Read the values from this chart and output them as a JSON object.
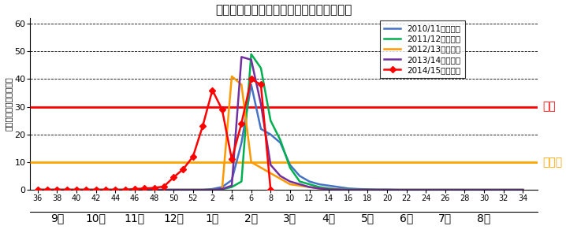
{
  "title": "神奈川県インフルエンザ定点当たり報告数",
  "ylabel": "定点当たり報告数（人）",
  "ylim": [
    0,
    62
  ],
  "yticks": [
    0,
    10,
    20,
    30,
    40,
    50,
    60
  ],
  "alert_level": 30,
  "caution_level": 10,
  "alert_label": "警報",
  "caution_label": "注意報",
  "week_ticks_raw": [
    36,
    38,
    40,
    42,
    44,
    46,
    48,
    50,
    52,
    2,
    4,
    6,
    8,
    10,
    12,
    14,
    16,
    18,
    20,
    22,
    24,
    26,
    28,
    30,
    32,
    34
  ],
  "month_names": [
    "9月",
    "10月",
    "11月",
    "12月",
    "1月",
    "2月",
    "3月",
    "4月",
    "5月",
    "6月",
    "7月",
    "8月"
  ],
  "month_tick_starts_raw": [
    36,
    40,
    44,
    48,
    52,
    4,
    8,
    12,
    16,
    20,
    24,
    28,
    32
  ],
  "xlim_left": 35.2,
  "xlim_right": 87.5,
  "seasons": [
    {
      "label": "2010/11シーズン",
      "color": "#4472C4",
      "marker": null,
      "weeks": [
        36,
        37,
        38,
        39,
        40,
        41,
        42,
        43,
        44,
        45,
        46,
        47,
        48,
        49,
        50,
        51,
        52,
        1,
        2,
        3,
        4,
        5,
        6,
        7,
        8,
        9,
        10,
        11,
        12,
        13,
        14,
        15,
        16,
        17,
        18,
        19,
        20,
        21,
        22,
        23,
        24,
        25,
        26,
        27,
        28,
        29,
        30,
        31,
        32,
        33,
        34
      ],
      "values": [
        0,
        0,
        0,
        0,
        0,
        0,
        0,
        0,
        0,
        0,
        0,
        0,
        0,
        0,
        0,
        0,
        0,
        0,
        0.3,
        1.0,
        3.5,
        17,
        38,
        22,
        20,
        17,
        9,
        5,
        3,
        2,
        1.5,
        1.0,
        0.5,
        0.3,
        0.2,
        0.1,
        0.1,
        0,
        0,
        0,
        0,
        0,
        0,
        0,
        0,
        0,
        0,
        0,
        0,
        0,
        0
      ]
    },
    {
      "label": "2011/12シーズン",
      "color": "#00B050",
      "marker": null,
      "weeks": [
        36,
        37,
        38,
        39,
        40,
        41,
        42,
        43,
        44,
        45,
        46,
        47,
        48,
        49,
        50,
        51,
        52,
        1,
        2,
        3,
        4,
        5,
        6,
        7,
        8,
        9,
        10,
        11,
        12,
        13,
        14,
        15,
        16,
        17,
        18,
        19,
        20,
        21,
        22,
        23,
        24,
        25,
        26,
        27,
        28,
        29,
        30,
        31,
        32,
        33,
        34
      ],
      "values": [
        0,
        0,
        0,
        0,
        0,
        0,
        0,
        0,
        0,
        0,
        0,
        0,
        0,
        0,
        0,
        0,
        0,
        0,
        0,
        0.2,
        1.0,
        3.0,
        49,
        44,
        25,
        18,
        8,
        3,
        2,
        1,
        0.5,
        0.2,
        0.1,
        0,
        0,
        0,
        0,
        0,
        0,
        0,
        0,
        0,
        0,
        0,
        0,
        0,
        0,
        0,
        0,
        0,
        0
      ]
    },
    {
      "label": "2012/13シーズン",
      "color": "#FF9900",
      "marker": null,
      "weeks": [
        36,
        37,
        38,
        39,
        40,
        41,
        42,
        43,
        44,
        45,
        46,
        47,
        48,
        49,
        50,
        51,
        52,
        1,
        2,
        3,
        4,
        5,
        6,
        7,
        8,
        9,
        10,
        11,
        12,
        13,
        14,
        15,
        16,
        17,
        18,
        19,
        20,
        21,
        22,
        23,
        24,
        25,
        26,
        27,
        28,
        29,
        30,
        31,
        32,
        33,
        34
      ],
      "values": [
        0,
        0,
        0,
        0,
        0,
        0,
        0,
        0,
        0,
        0,
        0,
        0,
        0,
        0,
        0,
        0,
        0,
        0,
        0,
        0.1,
        41,
        38,
        10,
        8,
        6,
        4,
        2,
        1.5,
        1,
        0.5,
        0.2,
        0.1,
        0,
        0,
        0,
        0,
        0,
        0,
        0,
        0,
        0,
        0,
        0,
        0,
        0,
        0,
        0,
        0,
        0,
        0,
        0
      ]
    },
    {
      "label": "2013/14シーズン",
      "color": "#7030A0",
      "marker": null,
      "weeks": [
        36,
        37,
        38,
        39,
        40,
        41,
        42,
        43,
        44,
        45,
        46,
        47,
        48,
        49,
        50,
        51,
        52,
        1,
        2,
        3,
        4,
        5,
        6,
        7,
        8,
        9,
        10,
        11,
        12,
        13,
        14,
        15,
        16,
        17,
        18,
        19,
        20,
        21,
        22,
        23,
        24,
        25,
        26,
        27,
        28,
        29,
        30,
        31,
        32,
        33,
        34
      ],
      "values": [
        0,
        0,
        0,
        0,
        0,
        0,
        0,
        0,
        0,
        0,
        0,
        0,
        0,
        0,
        0,
        0,
        0,
        0,
        0,
        0.3,
        1.5,
        48,
        47,
        31,
        9,
        5,
        3,
        2,
        1,
        0.5,
        0.2,
        0.1,
        0,
        0,
        0,
        0,
        0,
        0,
        0,
        0,
        0,
        0,
        0,
        0,
        0,
        0,
        0,
        0,
        0,
        0,
        0
      ]
    },
    {
      "label": "2014/15シーズン",
      "color": "#FF0000",
      "marker": "D",
      "weeks": [
        36,
        37,
        38,
        39,
        40,
        41,
        42,
        43,
        44,
        45,
        46,
        47,
        48,
        49,
        50,
        51,
        52,
        1,
        2,
        3,
        4,
        5,
        6,
        7,
        8
      ],
      "values": [
        0,
        0,
        0,
        0,
        0,
        0,
        0,
        0,
        0,
        0,
        0.3,
        0.5,
        0.7,
        1.2,
        4.5,
        7.5,
        12,
        23,
        36,
        29,
        11,
        24,
        40,
        38,
        0
      ]
    }
  ],
  "background_color": "#FFFFFF"
}
